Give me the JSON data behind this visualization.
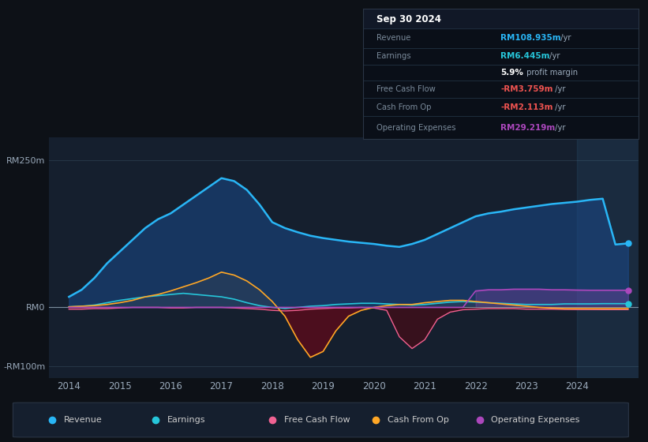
{
  "bg_color": "#0d1117",
  "plot_bg": "#151f2e",
  "ylim": [
    -120,
    290
  ],
  "xlim": [
    2013.6,
    2025.2
  ],
  "legend_items": [
    {
      "label": "Revenue",
      "color": "#29b6f6"
    },
    {
      "label": "Earnings",
      "color": "#26c6da"
    },
    {
      "label": "Free Cash Flow",
      "color": "#f06292"
    },
    {
      "label": "Cash From Op",
      "color": "#ffa726"
    },
    {
      "label": "Operating Expenses",
      "color": "#ab47bc"
    }
  ],
  "years": [
    2014.0,
    2014.25,
    2014.5,
    2014.75,
    2015.0,
    2015.25,
    2015.5,
    2015.75,
    2016.0,
    2016.25,
    2016.5,
    2016.75,
    2017.0,
    2017.25,
    2017.5,
    2017.75,
    2018.0,
    2018.25,
    2018.5,
    2018.75,
    2019.0,
    2019.25,
    2019.5,
    2019.75,
    2020.0,
    2020.25,
    2020.5,
    2020.75,
    2021.0,
    2021.25,
    2021.5,
    2021.75,
    2022.0,
    2022.25,
    2022.5,
    2022.75,
    2023.0,
    2023.25,
    2023.5,
    2023.75,
    2024.0,
    2024.25,
    2024.5,
    2024.75,
    2025.0
  ],
  "revenue": [
    18,
    30,
    50,
    75,
    95,
    115,
    135,
    150,
    160,
    175,
    190,
    205,
    220,
    215,
    200,
    175,
    145,
    135,
    128,
    122,
    118,
    115,
    112,
    110,
    108,
    105,
    103,
    108,
    115,
    125,
    135,
    145,
    155,
    160,
    163,
    167,
    170,
    173,
    176,
    178,
    180,
    183,
    185,
    107,
    109
  ],
  "earnings": [
    1,
    2,
    4,
    8,
    12,
    15,
    18,
    20,
    22,
    24,
    22,
    20,
    18,
    14,
    8,
    3,
    0,
    -2,
    0,
    2,
    3,
    5,
    6,
    7,
    7,
    6,
    5,
    4,
    5,
    7,
    9,
    10,
    9,
    8,
    7,
    6,
    5,
    5,
    5,
    6,
    6,
    6,
    6.4,
    6.4,
    6.4
  ],
  "free_cash_flow": [
    -3,
    -3,
    -2,
    -2,
    -1,
    0,
    0,
    0,
    -1,
    -1,
    0,
    0,
    0,
    -1,
    -2,
    -3,
    -5,
    -6,
    -5,
    -3,
    -2,
    -1,
    -1,
    0,
    -1,
    -5,
    -50,
    -70,
    -55,
    -20,
    -8,
    -4,
    -3,
    -2,
    -2,
    -2,
    -3,
    -3,
    -3,
    -3.5,
    -3.7,
    -3.7,
    -3.8,
    -3.8,
    -3.8
  ],
  "cash_from_op": [
    1,
    2,
    3,
    5,
    8,
    12,
    18,
    22,
    28,
    35,
    42,
    50,
    60,
    55,
    45,
    30,
    10,
    -15,
    -55,
    -85,
    -75,
    -40,
    -15,
    -5,
    0,
    3,
    5,
    5,
    8,
    10,
    12,
    12,
    10,
    8,
    6,
    4,
    2,
    0,
    -1,
    -2,
    -2,
    -2.1,
    -2.1,
    -2.1,
    -2.1
  ],
  "operating_expenses": [
    0,
    0,
    0,
    0,
    0,
    0,
    0,
    0,
    0,
    0,
    0,
    0,
    0,
    0,
    0,
    0,
    0,
    0,
    0,
    0,
    0,
    0,
    0,
    0,
    0,
    0,
    0,
    0,
    0,
    0,
    0,
    0,
    28,
    30,
    30,
    31,
    31,
    31,
    30,
    30,
    29.5,
    29.2,
    29.2,
    29.2,
    29.2
  ],
  "xtick_positions": [
    2014,
    2015,
    2016,
    2017,
    2018,
    2019,
    2020,
    2021,
    2022,
    2023,
    2024
  ],
  "ytick_vals": [
    -100,
    0,
    250
  ],
  "ytick_labels": [
    "-RM100m",
    "RM0",
    "RM250m"
  ],
  "info_rows": [
    {
      "label": "Revenue",
      "value": "RM108.935m",
      "suffix": " /yr",
      "vcolor": "#29b6f6"
    },
    {
      "label": "Earnings",
      "value": "RM6.445m",
      "suffix": " /yr",
      "vcolor": "#26c6da"
    },
    {
      "label": "",
      "value": "5.9%",
      "suffix": " profit margin",
      "vcolor": "#ffffff"
    },
    {
      "label": "Free Cash Flow",
      "value": "-RM3.759m",
      "suffix": " /yr",
      "vcolor": "#ef5350"
    },
    {
      "label": "Cash From Op",
      "value": "-RM2.113m",
      "suffix": " /yr",
      "vcolor": "#ef5350"
    },
    {
      "label": "Operating Expenses",
      "value": "RM29.219m",
      "suffix": " /yr",
      "vcolor": "#ab47bc"
    }
  ]
}
